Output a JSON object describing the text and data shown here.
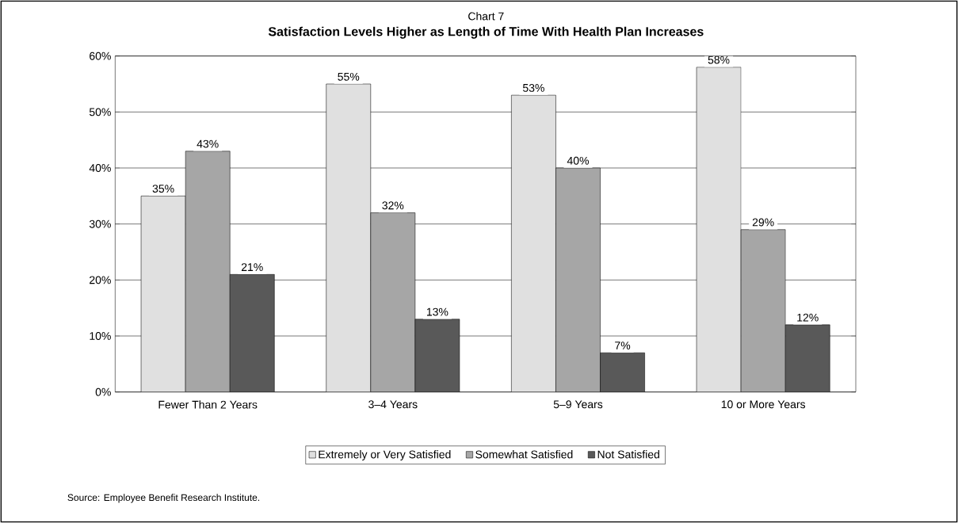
{
  "chart_data": {
    "type": "bar",
    "subtitle": "Chart 7",
    "title": "Satisfaction Levels Higher as Length of Time With Health Plan Increases",
    "categories": [
      "Fewer Than 2 Years",
      "3–4 Years",
      "5–9 Years",
      "10 or More Years"
    ],
    "series": [
      {
        "name": "Extremely or Very Satisfied",
        "color": "#e0e0e0",
        "values": [
          35,
          55,
          53,
          58
        ],
        "value_labels": [
          "35%",
          "55%",
          "53%",
          "58%"
        ]
      },
      {
        "name": "Somewhat Satisfied",
        "color": "#a6a6a6",
        "values": [
          43,
          32,
          40,
          29
        ],
        "value_labels": [
          "43%",
          "32%",
          "40%",
          "29%"
        ]
      },
      {
        "name": "Not Satisfied",
        "color": "#595959",
        "values": [
          21,
          13,
          7,
          12
        ],
        "value_labels": [
          "21%",
          "13%",
          "7%",
          "12%"
        ]
      }
    ],
    "ylim": [
      0,
      60
    ],
    "yticks": [
      {
        "value": 0,
        "label": "0%"
      },
      {
        "value": 10,
        "label": "10%"
      },
      {
        "value": 20,
        "label": "20%"
      },
      {
        "value": 30,
        "label": "30%"
      },
      {
        "value": 40,
        "label": "40%"
      },
      {
        "value": 50,
        "label": "50%"
      },
      {
        "value": 60,
        "label": "60%"
      }
    ],
    "grid": "y",
    "legend": "bottom",
    "annotations": [
      "Source: Employee Benefit Research Institute."
    ]
  }
}
